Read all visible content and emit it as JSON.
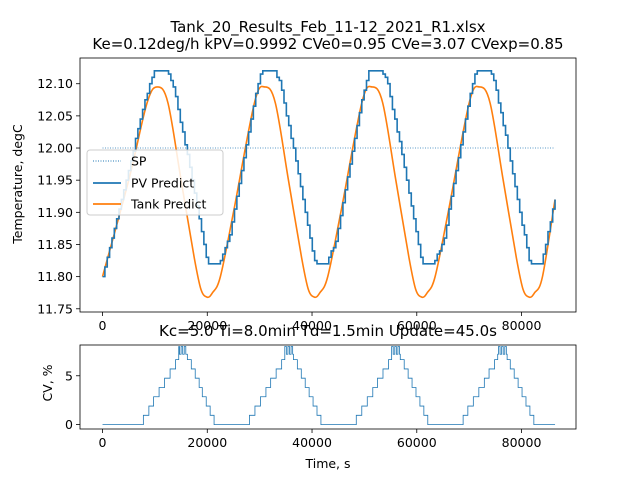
{
  "chart_data": [
    {
      "type": "line",
      "title": "Tank_20_Results_Feb_11-12_2021_R1.xlsx",
      "subtitle": "Ke=0.12deg/h kPV=0.9992 CVe0=0.95 CVe=3.07 CVexp=0.85",
      "xlabel": "",
      "ylabel": "Temperature, degC",
      "xlim": [
        -4300,
        90400
      ],
      "ylim": [
        11.745,
        12.14
      ],
      "xticks": [
        0,
        20000,
        40000,
        60000,
        80000
      ],
      "yticks": [
        "11.75",
        "11.80",
        "11.85",
        "11.90",
        "11.95",
        "12.00",
        "12.05",
        "12.10"
      ],
      "grid": false,
      "legend_position": "center-left",
      "series": [
        {
          "name": "SP",
          "color": "#1f77b4",
          "style": "dotted",
          "x": [
            0,
            86400
          ],
          "y": [
            12.0,
            12.0
          ]
        },
        {
          "name": "PV Predict",
          "color": "#1f77b4",
          "style": "solid",
          "x": [
            0,
            8300,
            9800,
            12400,
            13400,
            16400,
            17500,
            19800,
            20200,
            22300,
            24200,
            29100,
            30300,
            32900,
            33900,
            36900,
            38000,
            40300,
            40700,
            42800,
            44700,
            49600,
            50800,
            53400,
            54400,
            57400,
            58500,
            60800,
            61200,
            63300,
            65200,
            70100,
            71300,
            73900,
            74900,
            77900,
            79000,
            81300,
            81700,
            83800,
            86400
          ],
          "y": [
            11.8,
            12.08,
            12.12,
            12.12,
            12.1,
            11.98,
            11.93,
            11.83,
            11.82,
            11.82,
            11.86,
            12.08,
            12.12,
            12.12,
            12.1,
            11.98,
            11.93,
            11.83,
            11.82,
            11.82,
            11.86,
            12.08,
            12.12,
            12.12,
            12.1,
            11.98,
            11.93,
            11.83,
            11.82,
            11.82,
            11.86,
            12.08,
            12.12,
            12.12,
            12.1,
            11.98,
            11.93,
            11.83,
            11.82,
            11.82,
            11.92
          ]
        },
        {
          "name": "Tank Predict",
          "color": "#ff7f0e",
          "style": "solid",
          "x": [
            0,
            5000,
            8500,
            10500,
            12500,
            15000,
            17500,
            18800,
            20000,
            21000,
            22500,
            25000,
            29000,
            31000,
            33000,
            35500,
            38000,
            39300,
            40500,
            41500,
            43000,
            45500,
            49500,
            51500,
            53500,
            56000,
            58500,
            59800,
            61000,
            62000,
            63500,
            66000,
            70000,
            72000,
            74000,
            76500,
            79000,
            80300,
            81500,
            82500,
            84000,
            86400
          ],
          "y": [
            11.8,
            11.95,
            12.07,
            12.095,
            12.07,
            11.95,
            11.83,
            11.78,
            11.768,
            11.775,
            11.8,
            11.9,
            12.07,
            12.095,
            12.07,
            11.95,
            11.83,
            11.78,
            11.768,
            11.775,
            11.8,
            11.9,
            12.07,
            12.095,
            12.07,
            11.95,
            11.83,
            11.78,
            11.768,
            11.775,
            11.8,
            11.9,
            12.07,
            12.095,
            12.07,
            11.95,
            11.83,
            11.78,
            11.768,
            11.775,
            11.8,
            11.92
          ]
        }
      ]
    },
    {
      "type": "line",
      "title": "Kc=5.0 Ti=8.0min Td=1.5min Update=45.0s",
      "xlabel": "Time, s",
      "ylabel": "CV, %",
      "xlim": [
        -4300,
        90400
      ],
      "ylim": [
        -0.45,
        8.15
      ],
      "xticks": [
        0,
        20000,
        40000,
        60000,
        80000
      ],
      "yticks": [
        0,
        5
      ],
      "grid": false,
      "step": 0.95,
      "series": [
        {
          "name": "CV",
          "color": "#1f77b4",
          "x": [
            0,
            6700,
            14400,
            14400,
            15700,
            16400,
            22000,
            27000,
            34700,
            34700,
            36000,
            36700,
            42400,
            47400,
            55100,
            55100,
            56400,
            57100,
            62700,
            67700,
            75400,
            75400,
            76700,
            77400,
            83000,
            86400
          ],
          "y": [
            0,
            0,
            7.2,
            8.0,
            8.0,
            7.2,
            0,
            0,
            7.2,
            8.0,
            8.0,
            7.2,
            0,
            0,
            7.2,
            8.0,
            8.0,
            7.2,
            0,
            0,
            7.2,
            8.0,
            8.0,
            7.2,
            0,
            0
          ]
        }
      ]
    }
  ]
}
